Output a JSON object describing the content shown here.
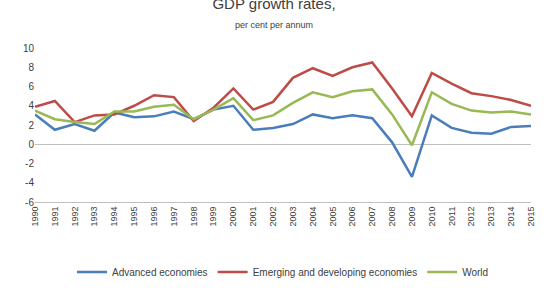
{
  "chart_data": {
    "type": "line",
    "title": "GDP growth rates,",
    "subtitle": "per cent per annum",
    "categories": [
      "1990",
      "1991",
      "1992",
      "1993",
      "1994",
      "1995",
      "1996",
      "1997",
      "1998",
      "1999",
      "2000",
      "2001",
      "2002",
      "2003",
      "2004",
      "2005",
      "2006",
      "2007",
      "2008",
      "2009",
      "2010",
      "2011",
      "2012",
      "2013",
      "2014",
      "2015"
    ],
    "series": [
      {
        "name": "Advanced economies",
        "color": "#4a7ebb",
        "values": [
          3.1,
          1.5,
          2.1,
          1.4,
          3.3,
          2.8,
          2.9,
          3.4,
          2.6,
          3.6,
          4.0,
          1.5,
          1.7,
          2.1,
          3.1,
          2.7,
          3.0,
          2.7,
          0.2,
          -3.4,
          3.0,
          1.7,
          1.2,
          1.1,
          1.8,
          1.9
        ]
      },
      {
        "name": "Emerging and developing economies",
        "color": "#be4b48",
        "values": [
          3.9,
          4.5,
          2.3,
          3.0,
          3.1,
          4.0,
          5.1,
          4.9,
          2.4,
          3.8,
          5.8,
          3.6,
          4.4,
          6.9,
          7.9,
          7.1,
          8.0,
          8.5,
          5.8,
          2.9,
          7.4,
          6.3,
          5.3,
          5.0,
          4.6,
          4.0
        ]
      },
      {
        "name": "World",
        "color": "#98b954",
        "values": [
          3.5,
          2.6,
          2.3,
          2.1,
          3.4,
          3.4,
          3.9,
          4.1,
          2.6,
          3.6,
          4.8,
          2.5,
          3.0,
          4.3,
          5.4,
          4.9,
          5.5,
          5.7,
          3.1,
          -0.1,
          5.4,
          4.2,
          3.5,
          3.3,
          3.4,
          3.1
        ]
      }
    ],
    "ylim": [
      -6,
      10
    ],
    "yticks": [
      -6,
      -4,
      -2,
      0,
      2,
      4,
      6,
      8,
      10
    ],
    "grid": false,
    "legend": "bottom"
  }
}
